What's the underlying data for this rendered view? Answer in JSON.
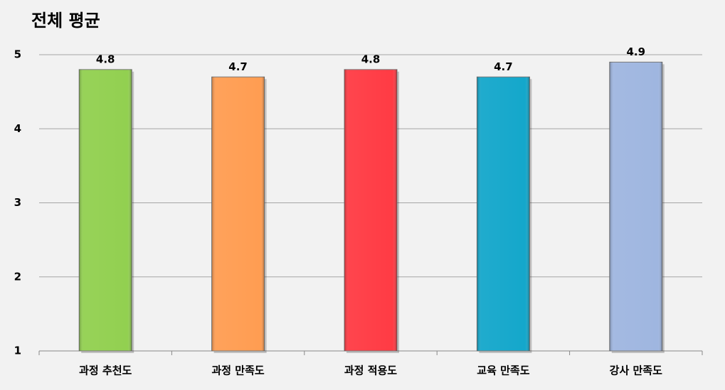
{
  "chart_data": {
    "type": "bar",
    "title": "전체 평균",
    "categories": [
      "과정 추천도",
      "과정 만족도",
      "과정 적용도",
      "교육 만족도",
      "강사 만족도"
    ],
    "values": [
      4.8,
      4.7,
      4.8,
      4.7,
      4.9
    ],
    "colors": [
      "#92d050",
      "#ff9d52",
      "#ff3b44",
      "#14a7cb",
      "#9fb6e0"
    ],
    "ylim": [
      1,
      5
    ],
    "yticks": [
      1,
      2,
      3,
      4,
      5
    ],
    "grid": true
  }
}
